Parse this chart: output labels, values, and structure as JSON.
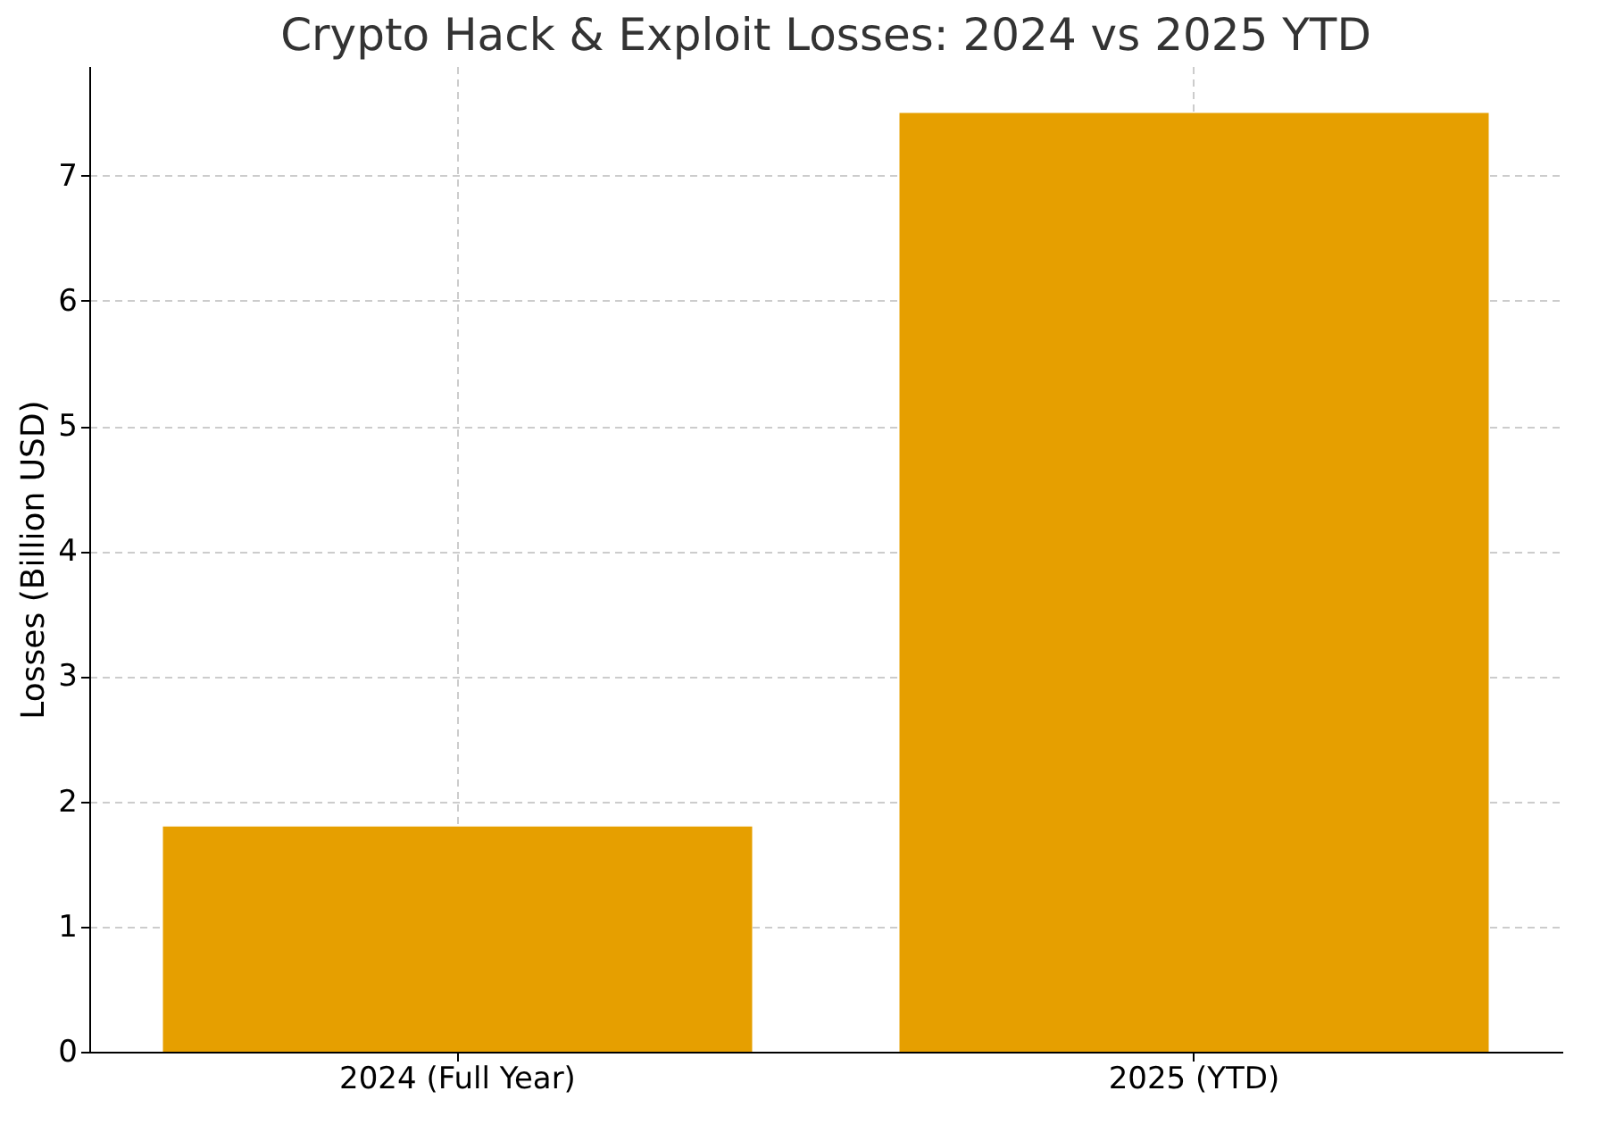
{
  "chart_data": {
    "type": "bar",
    "title": "Crypto Hack & Exploit Losses: 2024 vs 2025 YTD",
    "ylabel": "Losses (Billion USD)",
    "categories": [
      "2024 (Full Year)",
      "2025 (YTD)"
    ],
    "values": [
      1.8,
      7.5
    ],
    "color": "#e69f00",
    "ylim": [
      0,
      7.875
    ],
    "yticks": [
      0,
      1,
      2,
      3,
      4,
      5,
      6,
      7
    ],
    "grid": true
  }
}
